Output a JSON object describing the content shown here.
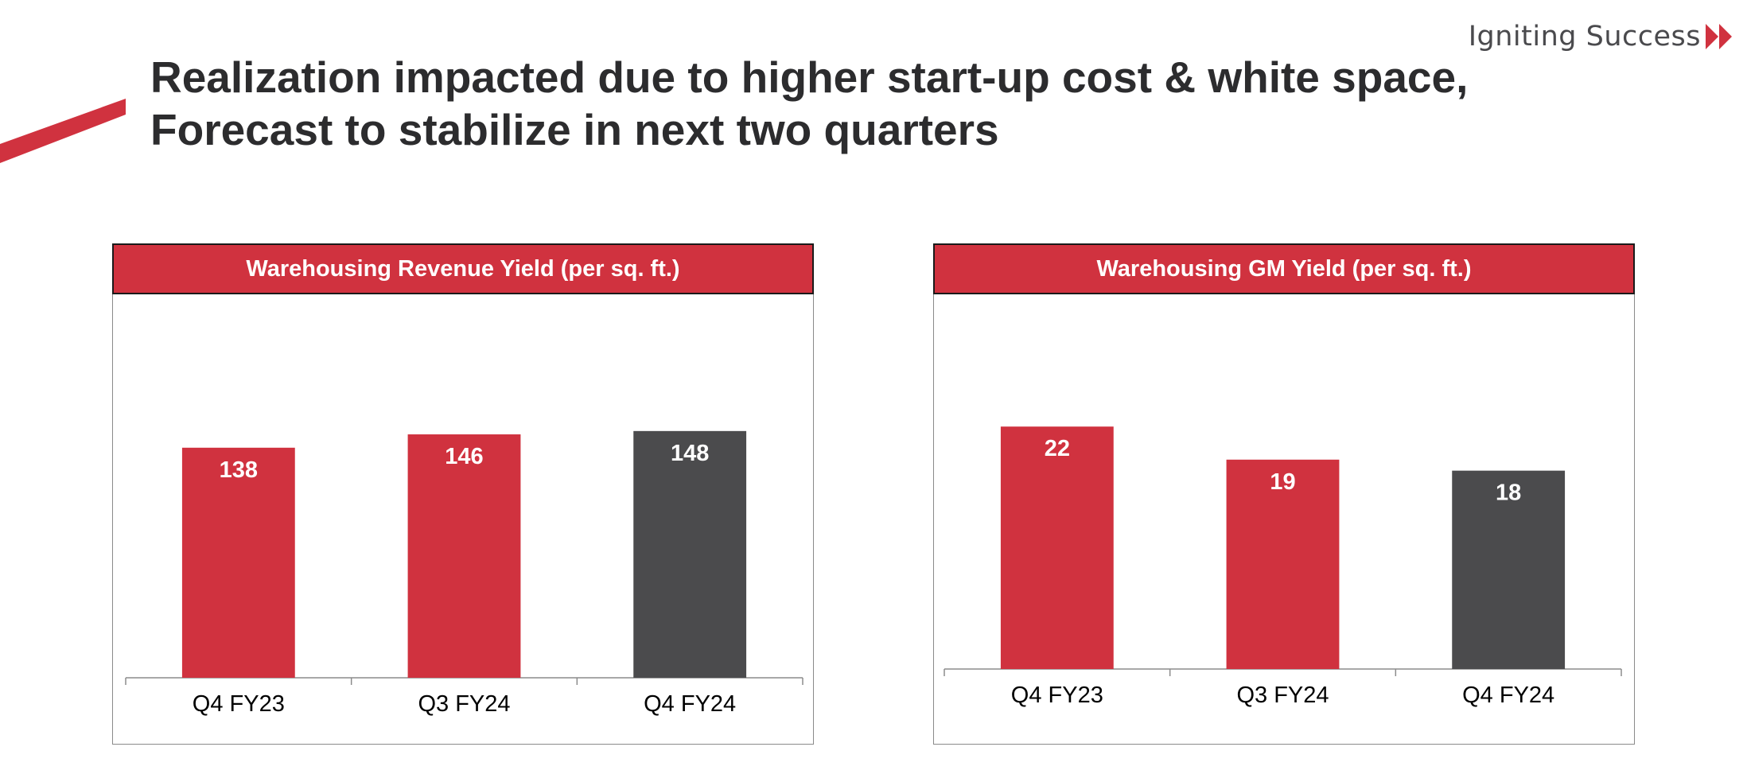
{
  "brand": {
    "tagline": "Igniting Success",
    "accent_color": "#d0323f",
    "text_color": "#4a4a4d"
  },
  "title": {
    "line1": "Realization impacted due to higher start-up cost & white space,",
    "line2": "Forecast to stabilize in next two quarters"
  },
  "colors": {
    "bar_primary": "#d0323f",
    "bar_highlight": "#4b4b4d",
    "header_bg": "#d0323f"
  },
  "chart_data": [
    {
      "type": "bar",
      "title": "Warehousing Revenue Yield (per sq. ft.)",
      "categories": [
        "Q4 FY23",
        "Q3 FY24",
        "Q4 FY24"
      ],
      "values": [
        138,
        146,
        148
      ],
      "labels": [
        "138",
        "146",
        "148"
      ],
      "bar_colors": [
        "#d0323f",
        "#d0323f",
        "#4b4b4d"
      ],
      "ylim": [
        0,
        230
      ],
      "xlabel": "",
      "ylabel": "",
      "grid": false,
      "legend": "none"
    },
    {
      "type": "bar",
      "title": "Warehousing GM Yield (per sq. ft.)",
      "categories": [
        "Q4 FY23",
        "Q3 FY24",
        "Q4 FY24"
      ],
      "values": [
        22,
        19,
        18
      ],
      "labels": [
        "22",
        "19",
        "18"
      ],
      "bar_colors": [
        "#d0323f",
        "#d0323f",
        "#4b4b4d"
      ],
      "ylim": [
        0,
        34
      ],
      "xlabel": "",
      "ylabel": "",
      "grid": false,
      "legend": "none"
    }
  ]
}
